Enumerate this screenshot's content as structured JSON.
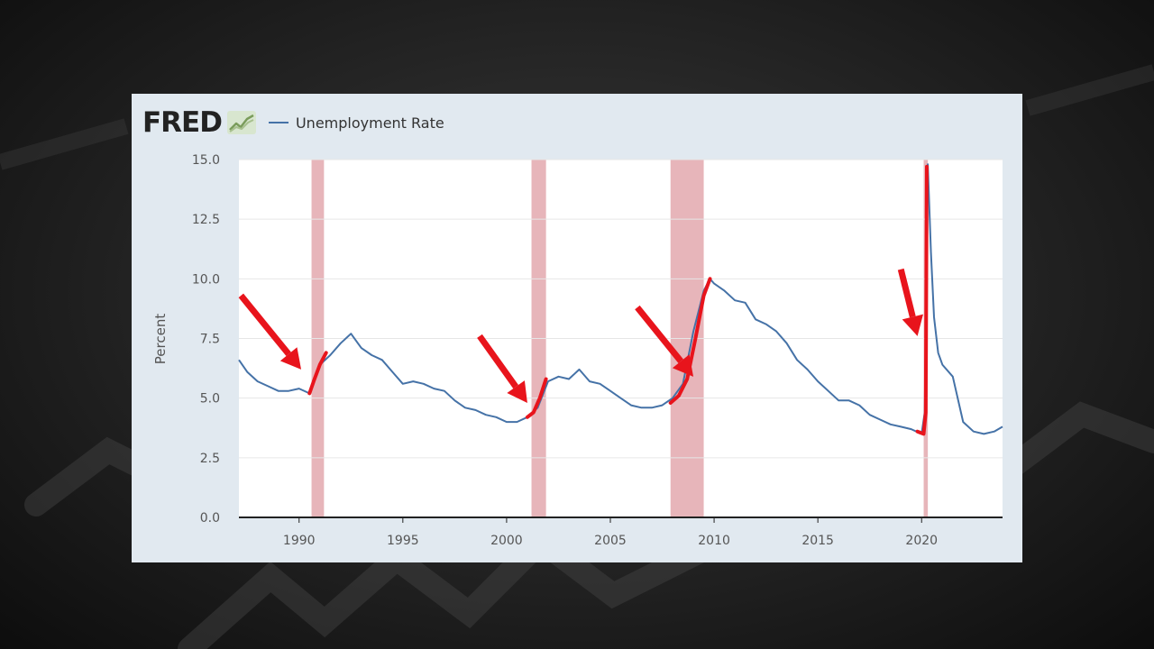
{
  "header": {
    "logo_text": "FRED",
    "logo_icon": "fred-chart-icon",
    "legend_label": "Unemployment Rate"
  },
  "colors": {
    "series": "#4572a7",
    "recession": "#e3a8ae",
    "annotation": "#e8141c",
    "card": "#e1e9f0"
  },
  "chart_data": {
    "type": "line",
    "title": "",
    "xlabel": "",
    "ylabel": "Percent",
    "xlim": [
      1987.1,
      2023.9
    ],
    "ylim": [
      0,
      15
    ],
    "x_ticks": [
      1990,
      1995,
      2000,
      2005,
      2010,
      2015,
      2020
    ],
    "x_tick_labels": [
      "1990",
      "1995",
      "2000",
      "2005",
      "2010",
      "2015",
      "2020"
    ],
    "y_ticks": [
      0,
      2.5,
      5,
      7.5,
      10,
      12.5,
      15
    ],
    "y_tick_labels": [
      "0.0",
      "2.5",
      "5.0",
      "7.5",
      "10.0",
      "12.5",
      "15.0"
    ],
    "grid": true,
    "recessions": [
      [
        1990.6,
        1991.2
      ],
      [
        2001.2,
        2001.9
      ],
      [
        2007.9,
        2009.5
      ],
      [
        2020.1,
        2020.3
      ]
    ],
    "series": [
      {
        "name": "Unemployment Rate",
        "x": [
          1987.1,
          1987.5,
          1988.0,
          1988.5,
          1989.0,
          1989.5,
          1990.0,
          1990.5,
          1990.7,
          1991.0,
          1991.5,
          1992.0,
          1992.5,
          1993.0,
          1993.5,
          1994.0,
          1994.5,
          1995.0,
          1995.5,
          1996.0,
          1996.5,
          1997.0,
          1997.5,
          1998.0,
          1998.5,
          1999.0,
          1999.5,
          2000.0,
          2000.5,
          2001.0,
          2001.5,
          2002.0,
          2002.5,
          2003.0,
          2003.5,
          2004.0,
          2004.5,
          2005.0,
          2005.5,
          2006.0,
          2006.5,
          2007.0,
          2007.5,
          2008.0,
          2008.5,
          2009.0,
          2009.5,
          2009.8,
          2010.0,
          2010.5,
          2011.0,
          2011.5,
          2012.0,
          2012.5,
          2013.0,
          2013.5,
          2014.0,
          2014.5,
          2015.0,
          2015.5,
          2016.0,
          2016.5,
          2017.0,
          2017.5,
          2018.0,
          2018.5,
          2019.0,
          2019.5,
          2020.0,
          2020.15,
          2020.3,
          2020.45,
          2020.6,
          2020.8,
          2021.0,
          2021.5,
          2022.0,
          2022.5,
          2023.0,
          2023.5,
          2023.9
        ],
        "y": [
          6.6,
          6.1,
          5.7,
          5.5,
          5.3,
          5.3,
          5.4,
          5.2,
          5.7,
          6.4,
          6.8,
          7.3,
          7.7,
          7.1,
          6.8,
          6.6,
          6.1,
          5.6,
          5.7,
          5.6,
          5.4,
          5.3,
          4.9,
          4.6,
          4.5,
          4.3,
          4.2,
          4.0,
          4.0,
          4.2,
          4.6,
          5.7,
          5.9,
          5.8,
          6.2,
          5.7,
          5.6,
          5.3,
          5.0,
          4.7,
          4.6,
          4.6,
          4.7,
          5.0,
          5.6,
          7.8,
          9.5,
          10.0,
          9.8,
          9.5,
          9.1,
          9.0,
          8.3,
          8.1,
          7.8,
          7.3,
          6.6,
          6.2,
          5.7,
          5.3,
          4.9,
          4.9,
          4.7,
          4.3,
          4.1,
          3.9,
          3.8,
          3.7,
          3.5,
          4.4,
          14.8,
          11.1,
          8.4,
          6.9,
          6.4,
          5.9,
          4.0,
          3.6,
          3.5,
          3.6,
          3.8
        ]
      }
    ],
    "annotations": [
      {
        "type": "highlight",
        "x": [
          1990.5,
          1990.7,
          1991.0,
          1991.3
        ],
        "y": [
          5.2,
          5.7,
          6.4,
          6.9
        ]
      },
      {
        "type": "highlight",
        "x": [
          2001.0,
          2001.3,
          2001.6,
          2001.9
        ],
        "y": [
          4.2,
          4.4,
          5.0,
          5.8
        ]
      },
      {
        "type": "highlight",
        "x": [
          2007.9,
          2008.3,
          2008.7,
          2009.1,
          2009.5,
          2009.8
        ],
        "y": [
          4.8,
          5.1,
          5.8,
          7.5,
          9.3,
          10.0
        ]
      },
      {
        "type": "highlight",
        "x": [
          2019.8,
          2020.1,
          2020.2,
          2020.25
        ],
        "y": [
          3.6,
          3.5,
          4.4,
          14.7
        ]
      },
      {
        "type": "arrow",
        "x1": 1987.2,
        "y1": 9.3,
        "x2": 1990.1,
        "y2": 6.2
      },
      {
        "type": "arrow",
        "x1": 1998.7,
        "y1": 7.6,
        "x2": 2001.0,
        "y2": 4.8
      },
      {
        "type": "arrow",
        "x1": 2006.3,
        "y1": 8.8,
        "x2": 2009.0,
        "y2": 5.9
      },
      {
        "type": "arrow",
        "x1": 2019.0,
        "y1": 10.4,
        "x2": 2019.8,
        "y2": 7.6
      }
    ]
  }
}
